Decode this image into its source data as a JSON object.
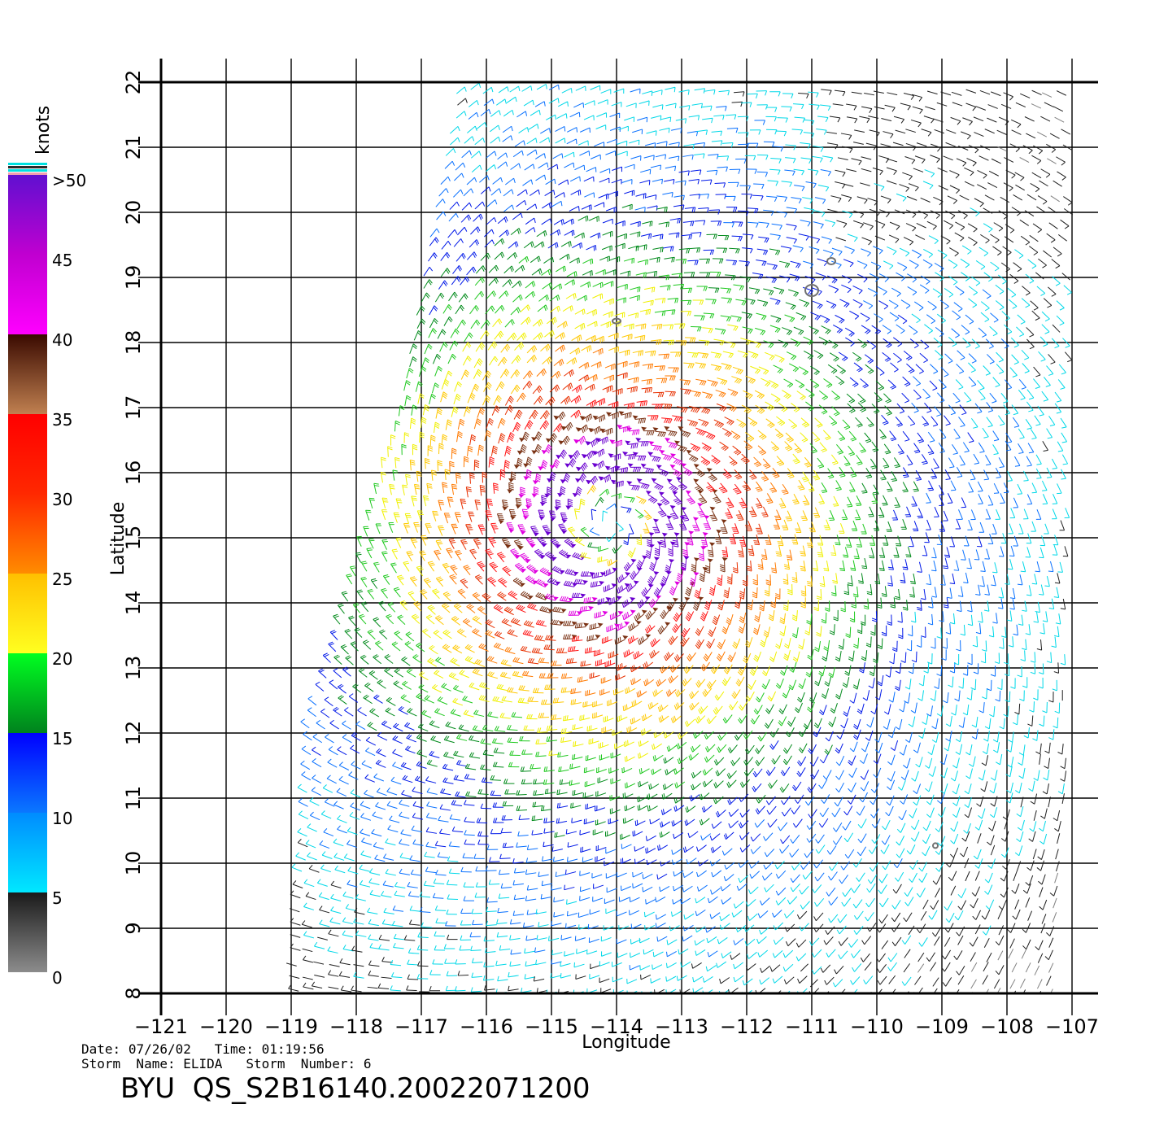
{
  "map": {
    "xlabel": "Longitude",
    "ylabel": "Latitude",
    "lon_range": [
      -121,
      -107
    ],
    "lat_range": [
      8,
      22
    ],
    "lon_ticks": [
      "−121",
      "−120",
      "−119",
      "−118",
      "−117",
      "−116",
      "−115",
      "−114",
      "−113",
      "−112",
      "−111",
      "−110",
      "−109",
      "−108",
      "−107"
    ],
    "lat_ticks": [
      "8",
      "9",
      "10",
      "11",
      "12",
      "13",
      "14",
      "15",
      "16",
      "17",
      "18",
      "19",
      "20",
      "21",
      "22"
    ],
    "grid": true,
    "storm_center": {
      "lon": -114.1,
      "lat": 15.2
    }
  },
  "colorbar": {
    "unit_label": "knots",
    "labels": [
      ">50",
      "45",
      "40",
      "35",
      "30",
      "25",
      "20",
      "15",
      "10",
      "5",
      "0"
    ],
    "bands": [
      {
        "from": 0,
        "to": 5,
        "colors": [
          "#8c8c8c",
          "#1a1a1a"
        ]
      },
      {
        "from": 5,
        "to": 10,
        "colors": [
          "#00e8ff",
          "#008cff"
        ]
      },
      {
        "from": 10,
        "to": 15,
        "colors": [
          "#0a78ff",
          "#0000ff"
        ]
      },
      {
        "from": 15,
        "to": 20,
        "colors": [
          "#00821e",
          "#00ff20"
        ]
      },
      {
        "from": 20,
        "to": 25,
        "colors": [
          "#ffff20",
          "#ffc000"
        ]
      },
      {
        "from": 25,
        "to": 30,
        "colors": [
          "#ff8c00",
          "#ff2800"
        ]
      },
      {
        "from": 30,
        "to": 35,
        "colors": [
          "#ff2800",
          "#ff0000"
        ]
      },
      {
        "from": 35,
        "to": 40,
        "colors": [
          "#c08050",
          "#3a0a00"
        ]
      },
      {
        "from": 40,
        "to": 45,
        "colors": [
          "#ff00ff",
          "#c000d0"
        ]
      },
      {
        "from": 45,
        "to": 50,
        "colors": [
          "#c000d0",
          "#6010d0"
        ]
      }
    ],
    "speed_colors": [
      "#808080",
      "#1e1e1e",
      "#00d8e8",
      "#0870ff",
      "#0018e8",
      "#008a1a",
      "#1ec81e",
      "#f0f000",
      "#ffc800",
      "#ff7a00",
      "#e83000",
      "#ff1414",
      "#7a3214",
      "#e000e0",
      "#6a00d0"
    ]
  },
  "footer": {
    "date_label": "Date:",
    "date": "07/26/02",
    "time_label": "Time:",
    "time": "01:19:56",
    "storm_name_label": "Storm  Name:",
    "storm_name": "ELIDA",
    "storm_number_label": "Storm  Number:",
    "storm_number": "6",
    "product": "BYU  QS_S2B16140.20022071200"
  }
}
